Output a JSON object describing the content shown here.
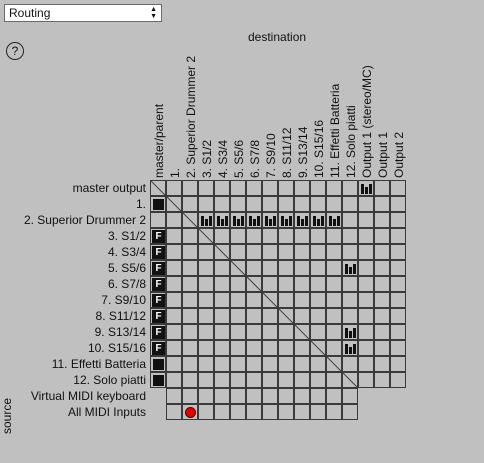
{
  "dropdown": {
    "label": "Routing"
  },
  "help": {
    "label": "?"
  },
  "titles": {
    "destination": "destination",
    "source": "source"
  },
  "columns": [
    "master/parent",
    "1.",
    "2. Superior Drummer 2",
    "3. S1/2",
    "4. S3/4",
    "5. S5/6",
    "6. S7/8",
    "7. S9/10",
    "8. S11/12",
    "9. S13/14",
    "10. S15/16",
    "11. Effetti Batteria",
    "12. Solo piatti",
    "Output 1 (stereo/MC)",
    "Output 1",
    "Output 2"
  ],
  "rows": [
    {
      "label": "master output",
      "cells": {
        "0": "diag",
        "13": "meter"
      }
    },
    {
      "label": "1.",
      "cells": {
        "0": "filled",
        "1": "diag"
      }
    },
    {
      "label": "2. Superior Drummer 2",
      "cells": {
        "2": "diag",
        "3": "meter",
        "4": "meter",
        "5": "meter",
        "6": "meter",
        "7": "meter",
        "8": "meter",
        "9": "meter",
        "10": "meter",
        "11": "meter"
      }
    },
    {
      "label": "3. S1/2",
      "cells": {
        "0": "F",
        "3": "diag"
      }
    },
    {
      "label": "4. S3/4",
      "cells": {
        "0": "F",
        "4": "diag"
      }
    },
    {
      "label": "5. S5/6",
      "cells": {
        "0": "F",
        "5": "diag",
        "12": "meter"
      }
    },
    {
      "label": "6. S7/8",
      "cells": {
        "0": "F",
        "6": "diag"
      }
    },
    {
      "label": "7. S9/10",
      "cells": {
        "0": "F",
        "7": "diag"
      }
    },
    {
      "label": "8. S11/12",
      "cells": {
        "0": "F",
        "8": "diag"
      }
    },
    {
      "label": "9. S13/14",
      "cells": {
        "0": "F",
        "9": "diag",
        "12": "meter"
      }
    },
    {
      "label": "10. S15/16",
      "cells": {
        "0": "F",
        "10": "diag",
        "12": "meter"
      }
    },
    {
      "label": "11. Effetti Batteria",
      "cells": {
        "0": "filled",
        "11": "diag"
      }
    },
    {
      "label": "12. Solo piatti",
      "cells": {
        "0": "filled",
        "12": "diag"
      }
    },
    {
      "label": "Virtual MIDI keyboard",
      "cells": {},
      "midi": true
    },
    {
      "label": "All MIDI Inputs",
      "cells": {
        "2": "dot"
      },
      "midi": true
    }
  ],
  "fader_glyph": "F",
  "colors": {
    "background": "#c0c0c0",
    "grid": "#3a3a3a",
    "record": "#e00000"
  }
}
